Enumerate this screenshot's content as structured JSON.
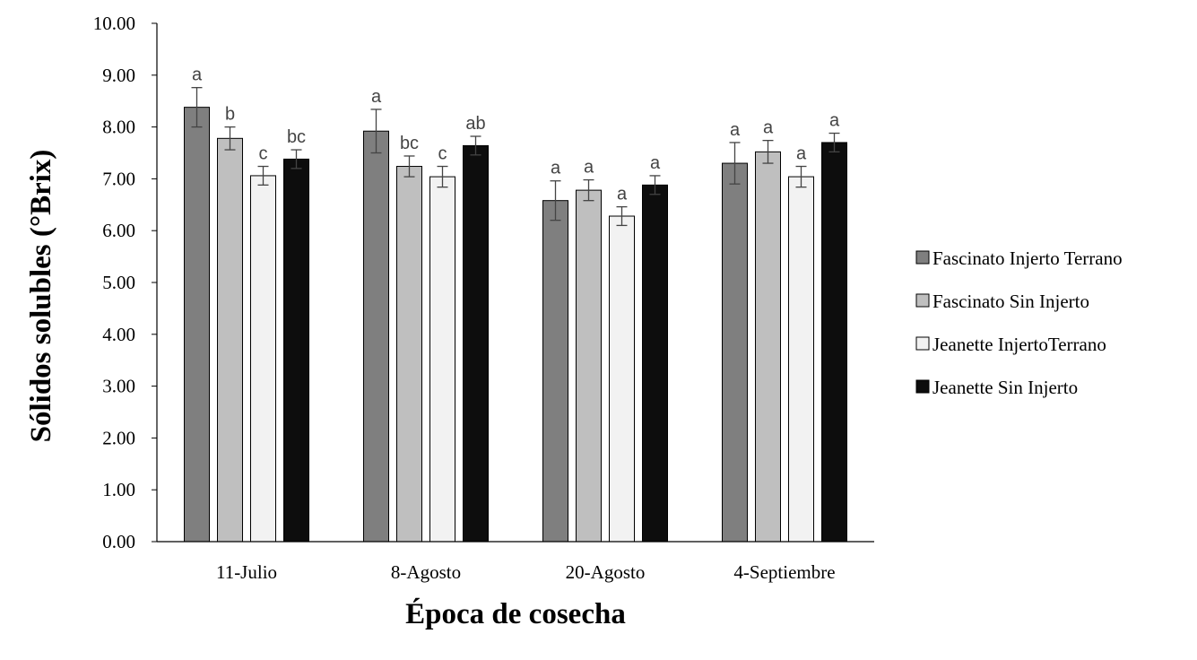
{
  "chart_data": {
    "type": "bar",
    "title": "",
    "xlabel": "Época de cosecha",
    "ylabel": "Sólidos solubles (°Brix)",
    "ylim": [
      0,
      10
    ],
    "yticks": [
      "0.00",
      "1.00",
      "2.00",
      "3.00",
      "4.00",
      "5.00",
      "6.00",
      "7.00",
      "8.00",
      "9.00",
      "10.00"
    ],
    "categories": [
      "11-Julio",
      "8-Agosto",
      "20-Agosto",
      "4-Septiembre"
    ],
    "grid": false,
    "legend_position": "right",
    "error_bars": true,
    "series": [
      {
        "name": "Fascinato Injerto Terrano",
        "color": "#7f7f7f",
        "values": [
          8.38,
          7.92,
          6.58,
          7.3
        ],
        "errors": [
          0.38,
          0.42,
          0.38,
          0.4
        ],
        "significance": [
          "a",
          "a",
          "a",
          "a"
        ]
      },
      {
        "name": "Fascinato Sin Injerto",
        "color": "#bfbfbf",
        "values": [
          7.78,
          7.24,
          6.78,
          7.52
        ],
        "errors": [
          0.22,
          0.2,
          0.2,
          0.22
        ],
        "significance": [
          "b",
          "bc",
          "a",
          "a"
        ]
      },
      {
        "name": "Jeanette InjertoTerrano",
        "color": "#f2f2f2",
        "values": [
          7.06,
          7.04,
          6.28,
          7.04
        ],
        "errors": [
          0.18,
          0.2,
          0.18,
          0.2
        ],
        "significance": [
          "c",
          "c",
          "a",
          "a"
        ]
      },
      {
        "name": "Jeanette Sin Injerto",
        "color": "#0d0d0d",
        "values": [
          7.38,
          7.64,
          6.88,
          7.7
        ],
        "errors": [
          0.18,
          0.18,
          0.18,
          0.18
        ],
        "significance": [
          "bc",
          "ab",
          "a",
          "a"
        ]
      }
    ]
  }
}
